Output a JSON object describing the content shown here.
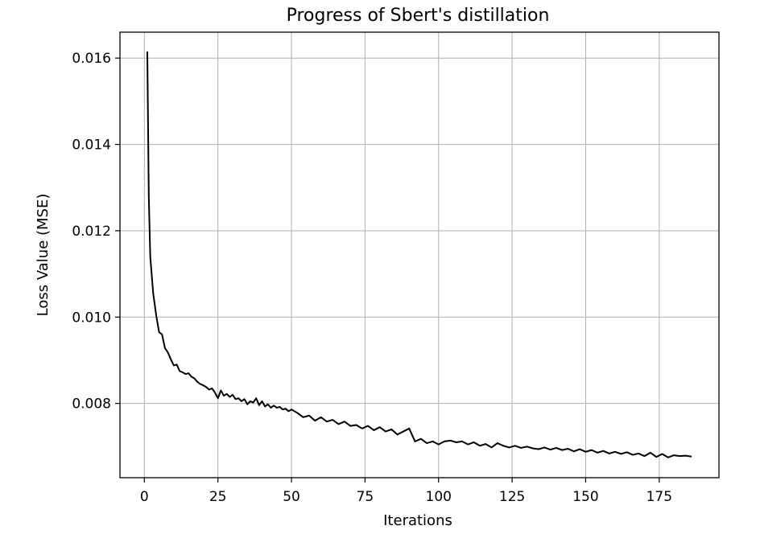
{
  "colors": {
    "line": "#000000",
    "grid": "#b0b0b0",
    "frame": "#000000",
    "background": "#ffffff"
  },
  "chart_data": {
    "type": "line",
    "title": "Progress of Sbert's distillation",
    "xlabel": "Iterations",
    "ylabel": "Loss Value (MSE)",
    "xlim": [
      -8.3,
      195.3
    ],
    "ylim": [
      0.00628,
      0.0166
    ],
    "xticks": [
      0,
      25,
      50,
      75,
      100,
      125,
      150,
      175
    ],
    "xtick_labels": [
      "0",
      "25",
      "50",
      "75",
      "100",
      "125",
      "150",
      "175"
    ],
    "yticks": [
      0.008,
      0.01,
      0.012,
      0.014,
      0.016
    ],
    "ytick_labels": [
      "0.008",
      "0.010",
      "0.012",
      "0.014",
      "0.016"
    ],
    "grid": true,
    "legend": false,
    "series": [
      {
        "x": [
          1,
          1.5,
          2,
          3,
          4,
          5,
          6,
          7,
          8,
          9,
          10,
          11,
          12,
          13,
          14,
          15,
          16,
          17,
          18,
          19,
          20,
          21,
          22,
          23,
          24,
          25,
          26,
          27,
          28,
          29,
          30,
          31,
          32,
          33,
          34,
          35,
          36,
          37,
          38,
          39,
          40,
          41,
          42,
          43,
          44,
          45,
          46,
          47,
          48,
          49,
          50,
          52,
          54,
          56,
          58,
          60,
          62,
          64,
          66,
          68,
          70,
          72,
          74,
          76,
          78,
          80,
          82,
          84,
          86,
          88,
          90,
          92,
          94,
          96,
          98,
          100,
          102,
          104,
          106,
          108,
          110,
          112,
          114,
          116,
          118,
          120,
          122,
          124,
          126,
          128,
          130,
          132,
          134,
          136,
          138,
          140,
          142,
          144,
          146,
          148,
          150,
          152,
          154,
          156,
          158,
          160,
          162,
          164,
          166,
          168,
          170,
          172,
          174,
          176,
          178,
          180,
          182,
          184,
          186
        ],
        "y": [
          0.01615,
          0.0128,
          0.0114,
          0.01055,
          0.01005,
          0.00965,
          0.0096,
          0.00928,
          0.00918,
          0.00902,
          0.00888,
          0.0089,
          0.00875,
          0.00872,
          0.00868,
          0.0087,
          0.00862,
          0.00858,
          0.0085,
          0.00845,
          0.00842,
          0.00838,
          0.00832,
          0.00835,
          0.00825,
          0.00812,
          0.0083,
          0.00818,
          0.00822,
          0.00815,
          0.0082,
          0.0081,
          0.00812,
          0.00805,
          0.0081,
          0.00798,
          0.00805,
          0.00802,
          0.00812,
          0.00796,
          0.00805,
          0.00793,
          0.00798,
          0.0079,
          0.00795,
          0.0079,
          0.00792,
          0.00786,
          0.00788,
          0.00782,
          0.00786,
          0.00778,
          0.00768,
          0.00772,
          0.0076,
          0.00768,
          0.00758,
          0.00762,
          0.00752,
          0.00758,
          0.00748,
          0.0075,
          0.00742,
          0.00748,
          0.00738,
          0.00745,
          0.00735,
          0.0074,
          0.00728,
          0.00735,
          0.00742,
          0.00712,
          0.00718,
          0.00708,
          0.00712,
          0.00705,
          0.00712,
          0.00714,
          0.0071,
          0.00712,
          0.00705,
          0.0071,
          0.00702,
          0.00706,
          0.00698,
          0.00708,
          0.00702,
          0.00698,
          0.00702,
          0.00697,
          0.007,
          0.00696,
          0.00694,
          0.00698,
          0.00693,
          0.00697,
          0.00692,
          0.00695,
          0.00689,
          0.00694,
          0.00688,
          0.00692,
          0.00686,
          0.0069,
          0.00684,
          0.00688,
          0.00683,
          0.00687,
          0.00681,
          0.00684,
          0.00678,
          0.00686,
          0.00676,
          0.00683,
          0.00675,
          0.0068,
          0.00678,
          0.00679,
          0.00677
        ]
      }
    ]
  }
}
